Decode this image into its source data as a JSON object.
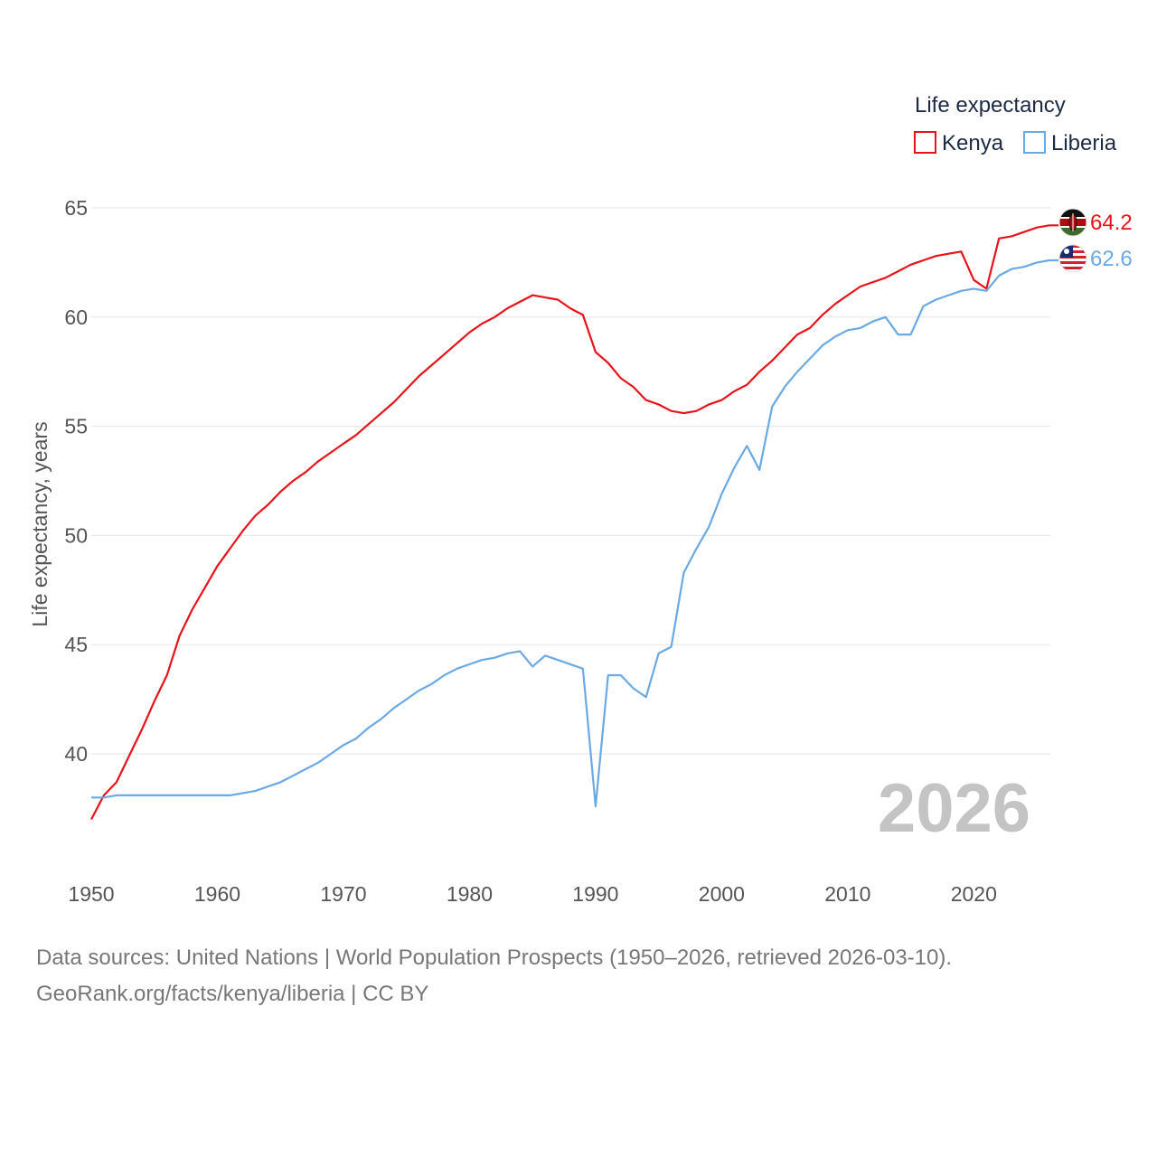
{
  "chart_data": {
    "type": "line",
    "legend_title": "Life expectancy",
    "legend_placement": "top-right",
    "ylabel": "Life expectancy, years",
    "xlabel": "",
    "year_label": "2026",
    "xlim": [
      1950,
      2026
    ],
    "ylim": [
      36,
      66
    ],
    "x_ticks": [
      "1950",
      "1960",
      "1970",
      "1980",
      "1990",
      "2000",
      "2010",
      "2020"
    ],
    "y_ticks": [
      "40",
      "45",
      "50",
      "55",
      "60",
      "65"
    ],
    "grid": true,
    "x": [
      1950,
      1951,
      1952,
      1953,
      1954,
      1955,
      1956,
      1957,
      1958,
      1959,
      1960,
      1961,
      1962,
      1963,
      1964,
      1965,
      1966,
      1967,
      1968,
      1969,
      1970,
      1971,
      1972,
      1973,
      1974,
      1975,
      1976,
      1977,
      1978,
      1979,
      1980,
      1981,
      1982,
      1983,
      1984,
      1985,
      1986,
      1987,
      1988,
      1989,
      1990,
      1991,
      1992,
      1993,
      1994,
      1995,
      1996,
      1997,
      1998,
      1999,
      2000,
      2001,
      2002,
      2003,
      2004,
      2005,
      2006,
      2007,
      2008,
      2009,
      2010,
      2011,
      2012,
      2013,
      2014,
      2015,
      2016,
      2017,
      2018,
      2019,
      2020,
      2021,
      2022,
      2023,
      2024,
      2025,
      2026
    ],
    "series": [
      {
        "name": "Kenya",
        "color": "#e8131a",
        "end_label": "64.2",
        "flag": "kenya-flag-icon",
        "values": [
          37.0,
          38.1,
          38.7,
          39.9,
          41.1,
          42.4,
          43.6,
          45.4,
          46.6,
          47.6,
          48.6,
          49.4,
          50.2,
          50.9,
          51.4,
          52.0,
          52.5,
          52.9,
          53.4,
          53.8,
          54.2,
          54.6,
          55.1,
          55.6,
          56.1,
          56.7,
          57.3,
          57.8,
          58.3,
          58.8,
          59.3,
          59.7,
          60.0,
          60.4,
          60.7,
          61.0,
          60.9,
          60.8,
          60.4,
          60.1,
          58.4,
          57.9,
          57.2,
          56.8,
          56.2,
          56.0,
          55.7,
          55.6,
          55.7,
          56.0,
          56.2,
          56.6,
          56.9,
          57.5,
          58.0,
          58.6,
          59.2,
          59.5,
          60.1,
          60.6,
          61.0,
          61.4,
          61.6,
          61.8,
          62.1,
          62.4,
          62.6,
          62.8,
          62.9,
          63.0,
          61.7,
          61.3,
          63.6,
          63.7,
          63.9,
          64.1,
          64.2
        ]
      },
      {
        "name": "Liberia",
        "color": "#6aa9e3",
        "end_label": "62.6",
        "flag": "liberia-flag-icon",
        "values": [
          38.0,
          38.0,
          38.1,
          38.1,
          38.1,
          38.1,
          38.1,
          38.1,
          38.1,
          38.1,
          38.1,
          38.1,
          38.2,
          38.3,
          38.5,
          38.7,
          39.0,
          39.3,
          39.6,
          40.0,
          40.4,
          40.7,
          41.2,
          41.6,
          42.1,
          42.5,
          42.9,
          43.2,
          43.6,
          43.9,
          44.1,
          44.3,
          44.4,
          44.6,
          44.7,
          44.0,
          44.5,
          44.3,
          44.1,
          43.9,
          37.6,
          43.6,
          43.6,
          43.0,
          42.6,
          44.6,
          44.9,
          48.3,
          49.4,
          50.4,
          51.9,
          53.1,
          54.1,
          53.0,
          55.9,
          56.8,
          57.5,
          58.1,
          58.7,
          59.1,
          59.4,
          59.5,
          59.8,
          60.0,
          59.2,
          59.2,
          60.5,
          60.8,
          61.0,
          61.2,
          61.3,
          61.2,
          61.9,
          62.2,
          62.3,
          62.5,
          62.6
        ]
      }
    ]
  },
  "footer": {
    "source_line": "Data sources: United Nations | World Population Prospects (1950–2026, retrieved 2026-03-10).",
    "credit_line": "GeoRank.org/facts/kenya/liberia | CC BY"
  }
}
